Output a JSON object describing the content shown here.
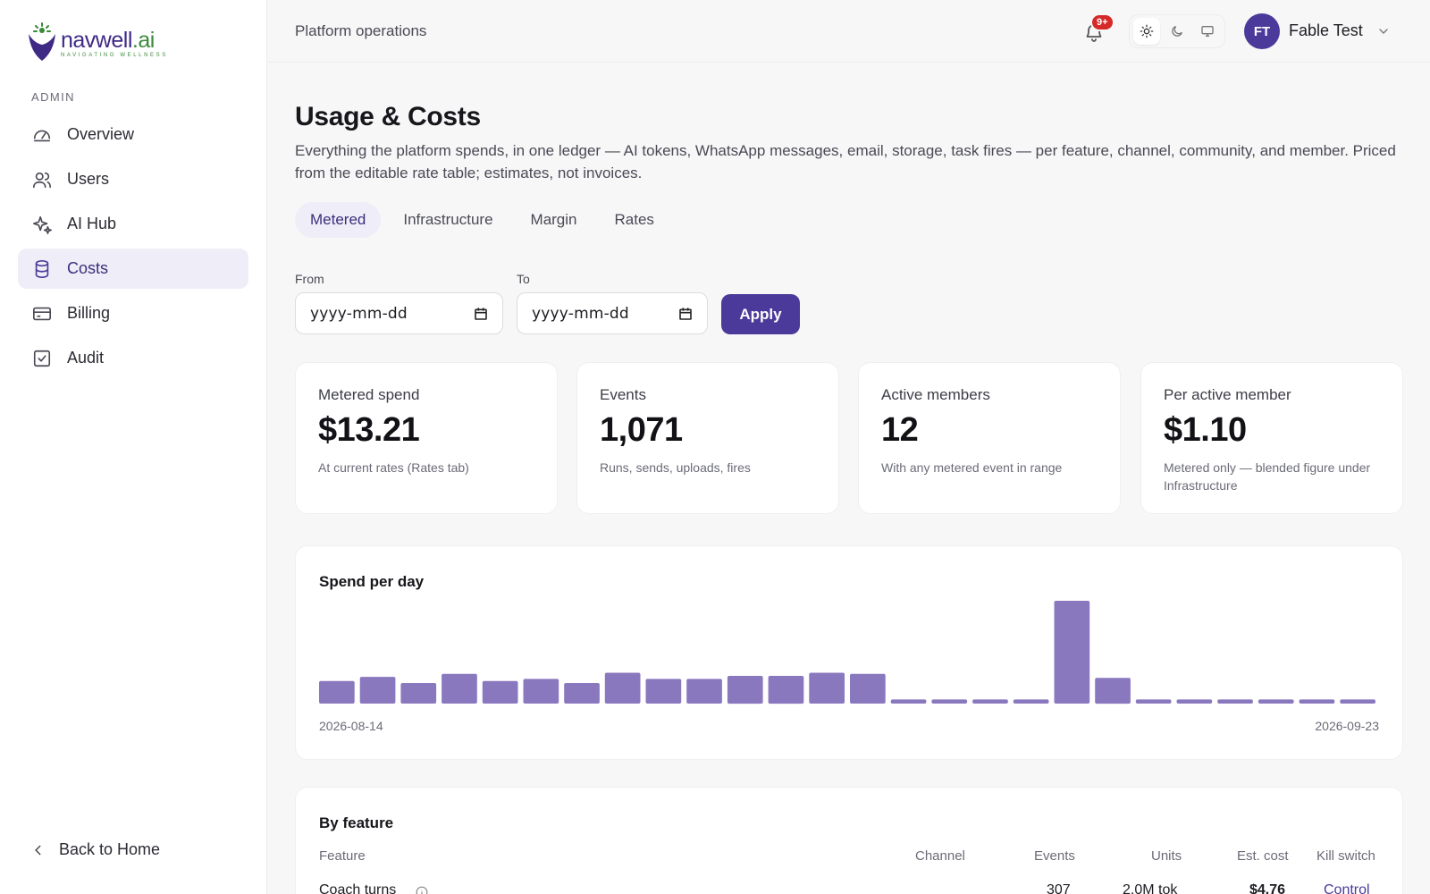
{
  "brand": {
    "word": "navwell",
    "suffix": ".ai",
    "tagline": "NAVIGATING WELLNESS"
  },
  "sidebar": {
    "section_label": "ADMIN",
    "items": [
      {
        "label": "Overview",
        "icon": "gauge-icon",
        "active": false
      },
      {
        "label": "Users",
        "icon": "users-icon",
        "active": false
      },
      {
        "label": "AI Hub",
        "icon": "sparkles-icon",
        "active": false
      },
      {
        "label": "Costs",
        "icon": "database-icon",
        "active": true
      },
      {
        "label": "Billing",
        "icon": "credit-card-icon",
        "active": false
      },
      {
        "label": "Audit",
        "icon": "checkbox-icon",
        "active": false
      }
    ],
    "back_label": "Back to Home"
  },
  "topbar": {
    "breadcrumb": "Platform operations",
    "notification_badge": "9+",
    "theme_selected": "light",
    "user_initials": "FT",
    "user_name": "Fable Test"
  },
  "page": {
    "title": "Usage & Costs",
    "description": "Everything the platform spends, in one ledger — AI tokens, WhatsApp messages, email, storage, task fires — per feature, channel, community, and member. Priced from the editable rate table; estimates, not invoices.",
    "tabs": [
      "Metered",
      "Infrastructure",
      "Margin",
      "Rates"
    ],
    "active_tab": "Metered"
  },
  "filters": {
    "from_label": "From",
    "to_label": "To",
    "from_placeholder": "yyyy-mm-dd",
    "to_placeholder": "yyyy-mm-dd",
    "apply_label": "Apply"
  },
  "stats": [
    {
      "label": "Metered spend",
      "value": "$13.21",
      "sub": "At current rates (Rates tab)"
    },
    {
      "label": "Events",
      "value": "1,071",
      "sub": "Runs, sends, uploads, fires"
    },
    {
      "label": "Active members",
      "value": "12",
      "sub": "With any metered event in range"
    },
    {
      "label": "Per active member",
      "value": "$1.10",
      "sub": "Metered only — blended figure under Infrastructure"
    }
  ],
  "colors": {
    "accent": "#4b3a99",
    "bar": "#8a78bf",
    "badge": "#d62929"
  },
  "chart_data": {
    "type": "bar",
    "title": "Spend per day",
    "x_start_label": "2026-08-14",
    "x_end_label": "2026-09-23",
    "values": [
      0.22,
      0.26,
      0.2,
      0.29,
      0.22,
      0.24,
      0.2,
      0.3,
      0.24,
      0.24,
      0.27,
      0.27,
      0.3,
      0.29,
      0.04,
      0.04,
      0.04,
      0.04,
      1.0,
      0.25,
      0.04,
      0.04,
      0.04,
      0.04,
      0.04,
      0.04
    ],
    "ylim": [
      0,
      1.0
    ]
  },
  "by_feature": {
    "title": "By feature",
    "columns": [
      "Feature",
      "Channel",
      "Events",
      "Units",
      "Est. cost",
      "Kill switch"
    ],
    "rows": [
      {
        "feature": "Coach turns",
        "channel": "",
        "events": "307",
        "units": "2.0M tok",
        "cost": "$4.76",
        "kill_switch": "Control"
      }
    ]
  }
}
